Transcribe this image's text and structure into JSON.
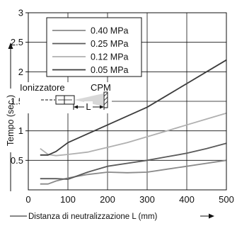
{
  "chart_data": {
    "type": "line",
    "xlabel": "Distanza di neutralizzazione L (mm)",
    "ylabel": "Tempo (sec.)",
    "xlim": [
      0,
      500
    ],
    "ylim": [
      0,
      3
    ],
    "xticks": [
      0,
      100,
      200,
      300,
      400,
      500
    ],
    "yticks": [
      0.5,
      1,
      1.5,
      2,
      2.5,
      3
    ],
    "ytick_labels": [
      "0.5",
      "1",
      "1.5",
      "2",
      "2.5",
      "3"
    ],
    "grid": true,
    "legend_position": "top-left",
    "series": [
      {
        "name": "0.40 MPa",
        "color": "#8a8a8a",
        "x": [
          30,
          50,
          70,
          100,
          150,
          200,
          250,
          300,
          350,
          400,
          450,
          500
        ],
        "y": [
          0.1,
          0.1,
          0.15,
          0.2,
          0.26,
          0.3,
          0.29,
          0.3,
          0.35,
          0.4,
          0.45,
          0.5
        ]
      },
      {
        "name": "0.25 MPa",
        "color": "#5a5a5a",
        "x": [
          30,
          50,
          70,
          100,
          150,
          200,
          250,
          300,
          350,
          400,
          450,
          500
        ],
        "y": [
          0.19,
          0.19,
          0.19,
          0.18,
          0.3,
          0.4,
          0.45,
          0.5,
          0.56,
          0.62,
          0.7,
          0.79
        ]
      },
      {
        "name": "0.12 MPa",
        "color": "#b0b0b0",
        "x": [
          30,
          50,
          70,
          100,
          150,
          200,
          250,
          300,
          350,
          400,
          450,
          500
        ],
        "y": [
          0.7,
          0.6,
          0.58,
          0.6,
          0.64,
          0.72,
          0.8,
          0.9,
          1.0,
          1.1,
          1.2,
          1.3
        ]
      },
      {
        "name": "0.05 MPa",
        "color": "#3c3c3c",
        "x": [
          30,
          50,
          70,
          100,
          150,
          200,
          250,
          300,
          350,
          400,
          450,
          500
        ],
        "y": [
          0.59,
          0.59,
          0.65,
          0.8,
          0.95,
          1.1,
          1.25,
          1.4,
          1.6,
          1.8,
          2.0,
          2.2
        ]
      }
    ],
    "annotations": {
      "device_label": "Ionizzatore",
      "target_label": "CPM",
      "distance_label": "L"
    }
  }
}
